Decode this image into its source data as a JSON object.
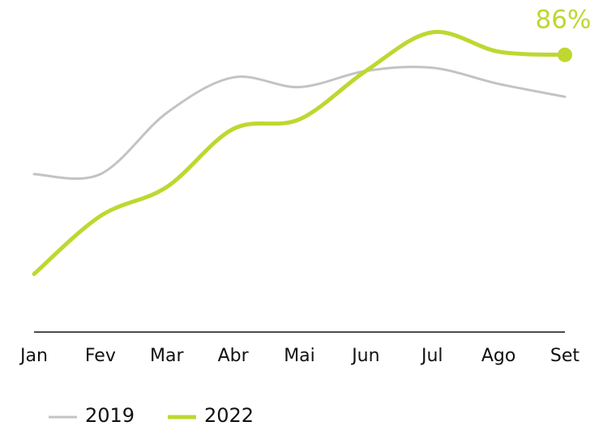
{
  "chart_data": {
    "type": "line",
    "categories": [
      "Jan",
      "Fev",
      "Mar",
      "Abr",
      "Mai",
      "Jun",
      "Jul",
      "Ago",
      "Set"
    ],
    "series": [
      {
        "name": "2019",
        "color": "#c3c3c3",
        "values": [
          49,
          49,
          68,
          79,
          76,
          81,
          82,
          77,
          73
        ]
      },
      {
        "name": "2022",
        "color": "#bfd730",
        "values": [
          18,
          36,
          45,
          63,
          66,
          81,
          93,
          87,
          86
        ],
        "value_labels": [
          null,
          null,
          null,
          null,
          null,
          null,
          null,
          null,
          "86%"
        ]
      }
    ],
    "ylim": [
      0,
      100
    ],
    "legend": "bottom"
  }
}
